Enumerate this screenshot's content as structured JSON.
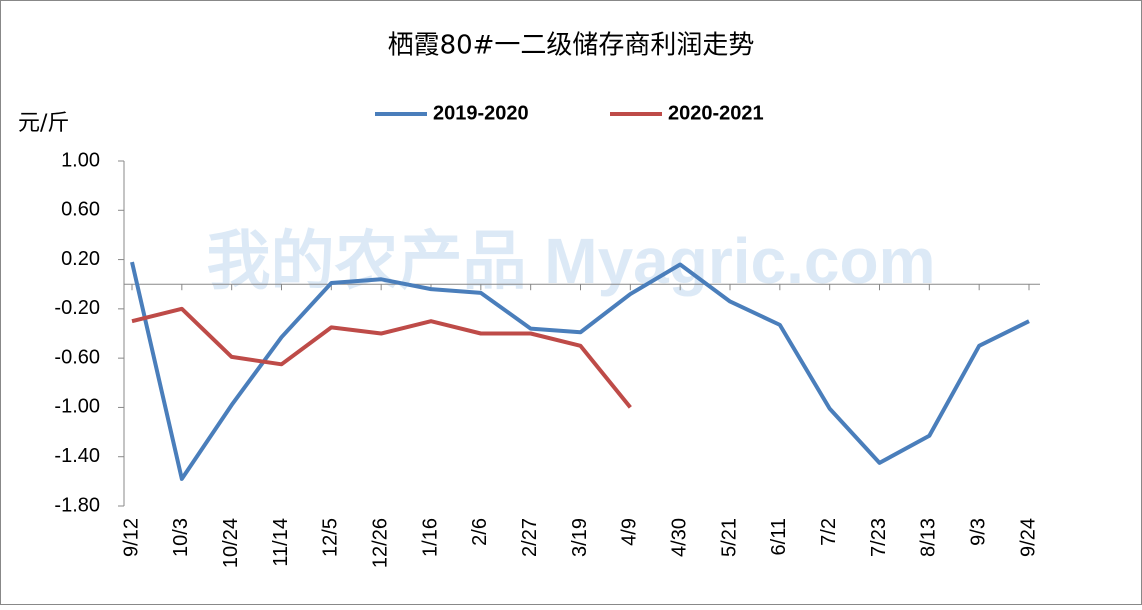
{
  "chart_data": {
    "type": "line",
    "title": "栖霞80#一二级储存商利润走势",
    "y_label": "元/斤",
    "watermark": "我的农产品 Myagric.com",
    "categories": [
      "9/12",
      "10/3",
      "10/24",
      "11/14",
      "12/5",
      "12/26",
      "1/16",
      "2/6",
      "2/27",
      "3/19",
      "4/9",
      "4/30",
      "5/21",
      "6/11",
      "7/2",
      "7/23",
      "8/13",
      "9/3",
      "9/24"
    ],
    "series": [
      {
        "name": "2019-2020",
        "color": "#4a7ebb",
        "values": [
          0.18,
          -1.58,
          -0.98,
          -0.43,
          0.01,
          0.04,
          -0.04,
          -0.07,
          -0.36,
          -0.39,
          -0.08,
          0.16,
          -0.14,
          -0.33,
          -1.01,
          -1.45,
          -1.23,
          -0.5,
          -0.3
        ]
      },
      {
        "name": "2020-2021",
        "color": "#be4b48",
        "values": [
          -0.3,
          -0.2,
          -0.59,
          -0.65,
          -0.35,
          -0.4,
          -0.3,
          -0.4,
          -0.4,
          -0.5,
          -1.0,
          null,
          null,
          null,
          null,
          null,
          null,
          null,
          null
        ]
      }
    ],
    "ylim": [
      -1.8,
      1.0
    ],
    "yticks": [
      {
        "value": 1.0,
        "label": "1.00"
      },
      {
        "value": 0.6,
        "label": "0.60"
      },
      {
        "value": 0.2,
        "label": "0.20"
      },
      {
        "value": -0.2,
        "label": "-0.20"
      },
      {
        "value": -0.6,
        "label": "-0.60"
      },
      {
        "value": -1.0,
        "label": "-1.00"
      },
      {
        "value": -1.4,
        "label": "-1.40"
      },
      {
        "value": -1.8,
        "label": "-1.80"
      }
    ],
    "legend": "top"
  }
}
